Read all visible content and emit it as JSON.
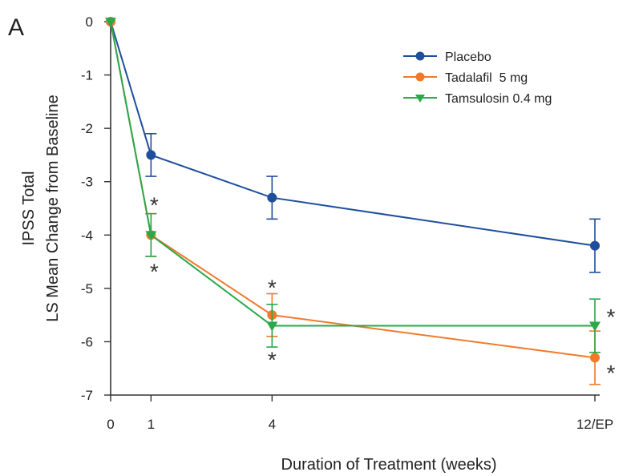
{
  "panel_label": "A",
  "chart_data": {
    "type": "line",
    "xlabel": "Duration of Treatment (weeks)",
    "ylabel_lines": [
      "IPSS Total",
      "LS Mean Change from Baseline"
    ],
    "x_ticks": [
      {
        "x": 0,
        "label": "0"
      },
      {
        "x": 1,
        "label": "1"
      },
      {
        "x": 4,
        "label": "4"
      },
      {
        "x": 12,
        "label": "12/EP"
      }
    ],
    "y_ticks": [
      {
        "y": 0,
        "label": "0"
      },
      {
        "y": -1,
        "label": "-1"
      },
      {
        "y": -2,
        "label": "-2"
      },
      {
        "y": -3,
        "label": "-3"
      },
      {
        "y": -4,
        "label": "-4"
      },
      {
        "y": -5,
        "label": "-5"
      },
      {
        "y": -6,
        "label": "-6"
      },
      {
        "y": -7,
        "label": "-7"
      }
    ],
    "xlim": [
      0,
      12
    ],
    "ylim": [
      -7,
      0
    ],
    "legend_position": "top-right",
    "series": [
      {
        "name": "Placebo",
        "color": "#1f4e9c",
        "marker": "circle",
        "x": [
          0,
          1,
          4,
          12
        ],
        "y": [
          0,
          -2.5,
          -3.3,
          -4.2
        ],
        "err": [
          0,
          0.4,
          0.4,
          0.5
        ]
      },
      {
        "name": "Tadalafil  5 mg",
        "color": "#f07a2a",
        "marker": "circle",
        "x": [
          0,
          1,
          4,
          12
        ],
        "y": [
          0,
          -4.0,
          -5.5,
          -6.3
        ],
        "err": [
          0,
          0.4,
          0.4,
          0.5
        ]
      },
      {
        "name": "Tamsulosin 0.4 mg",
        "color": "#2aa84a",
        "marker": "triangle-down",
        "x": [
          0,
          1,
          4,
          12
        ],
        "y": [
          0,
          -4.0,
          -5.7,
          -5.7
        ],
        "err": [
          0,
          0.4,
          0.4,
          0.5
        ]
      }
    ],
    "annotations": [
      {
        "text": "*",
        "x": 1,
        "y": -3.4
      },
      {
        "text": "*",
        "x": 1,
        "y": -4.65
      },
      {
        "text": "*",
        "x": 4,
        "y": -4.95
      },
      {
        "text": "*",
        "x": 4,
        "y": -6.3
      },
      {
        "text": "*",
        "x": 12,
        "y": -5.5
      },
      {
        "text": "*",
        "x": 12,
        "y": -6.55
      }
    ]
  }
}
